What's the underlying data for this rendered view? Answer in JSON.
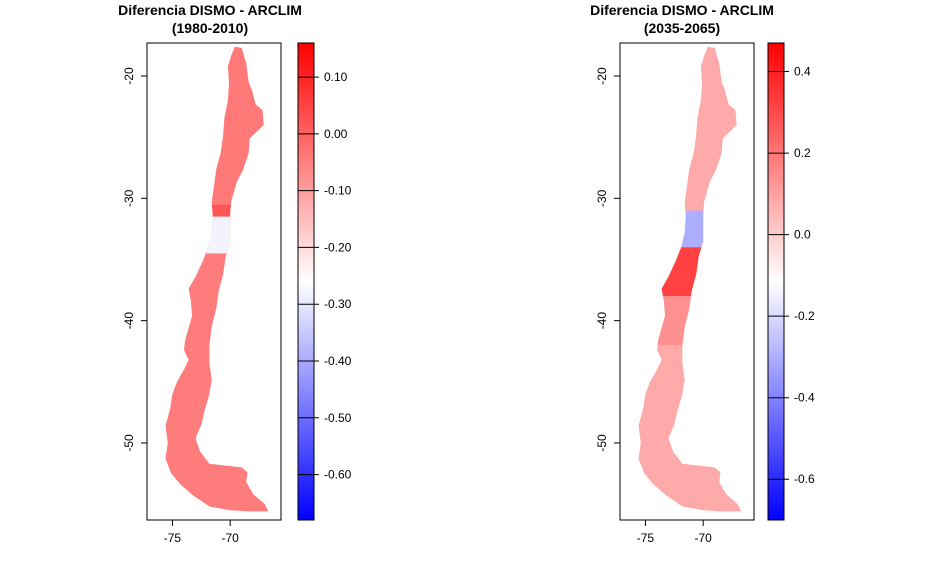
{
  "chart_data": [
    {
      "type": "heatmap",
      "title": "Diferencia DISMO - ARCLIM",
      "subtitle": "(1980-2010)",
      "xlabel": "",
      "ylabel": "",
      "xlim": [
        -77.2,
        -65.6
      ],
      "ylim": [
        -56.3,
        -17.3
      ],
      "x_ticks": [
        -75,
        -70
      ],
      "x_tick_labels": [
        "-75",
        "-70"
      ],
      "y_ticks": [
        -20,
        -30,
        -40,
        -50
      ],
      "y_tick_labels": [
        "-20",
        "-30",
        "-40",
        "-50"
      ],
      "colorbar": {
        "min": -0.68,
        "max": 0.16,
        "ticks": [
          0.1,
          0.0,
          -0.1,
          -0.2,
          -0.3,
          -0.4,
          -0.5,
          -0.6
        ],
        "tick_labels": [
          "0.10",
          "0.00",
          "-0.10",
          "-0.20",
          "-0.30",
          "-0.40",
          "-0.50",
          "-0.60"
        ],
        "colors": [
          "#0000ff",
          "#ffffff",
          "#ff0000"
        ]
      },
      "regions": [
        {
          "lat_range": [
            -55.9,
            -31.5
          ],
          "value": -0.045
        },
        {
          "lat_range": [
            -31.5,
            -30.5
          ],
          "value": 0.02
        },
        {
          "lat_range": [
            -30.5,
            -17.5
          ],
          "value": -0.04
        },
        {
          "lat_range": [
            -34.5,
            -31.5
          ],
          "value": -0.28
        }
      ],
      "grid": false
    },
    {
      "type": "heatmap",
      "title": "Diferencia DISMO - ARCLIM",
      "subtitle": "(2035-2065)",
      "xlabel": "",
      "ylabel": "",
      "xlim": [
        -77.2,
        -65.6
      ],
      "ylim": [
        -56.3,
        -17.3
      ],
      "x_ticks": [
        -75,
        -70
      ],
      "x_tick_labels": [
        "-75",
        "-70"
      ],
      "y_ticks": [
        -20,
        -30,
        -40,
        -50
      ],
      "y_tick_labels": [
        "-20",
        "-30",
        "-40",
        "-50"
      ],
      "colorbar": {
        "min": -0.7,
        "max": 0.47,
        "ticks": [
          0.4,
          0.2,
          0.0,
          -0.2,
          -0.4,
          -0.6
        ],
        "tick_labels": [
          "0.4",
          "0.2",
          "0.0",
          "-0.2",
          "-0.4",
          "-0.6"
        ],
        "colors": [
          "#0000ff",
          "#ffffff",
          "#ff0000"
        ]
      },
      "regions": [
        {
          "lat_range": [
            -55.9,
            -17.5
          ],
          "value": 0.08
        },
        {
          "lat_range": [
            -34.0,
            -31.0
          ],
          "value": -0.3
        },
        {
          "lat_range": [
            -38.0,
            -34.0
          ],
          "value": 0.32
        },
        {
          "lat_range": [
            -42.0,
            -38.0
          ],
          "value": 0.14
        }
      ],
      "grid": false
    }
  ]
}
